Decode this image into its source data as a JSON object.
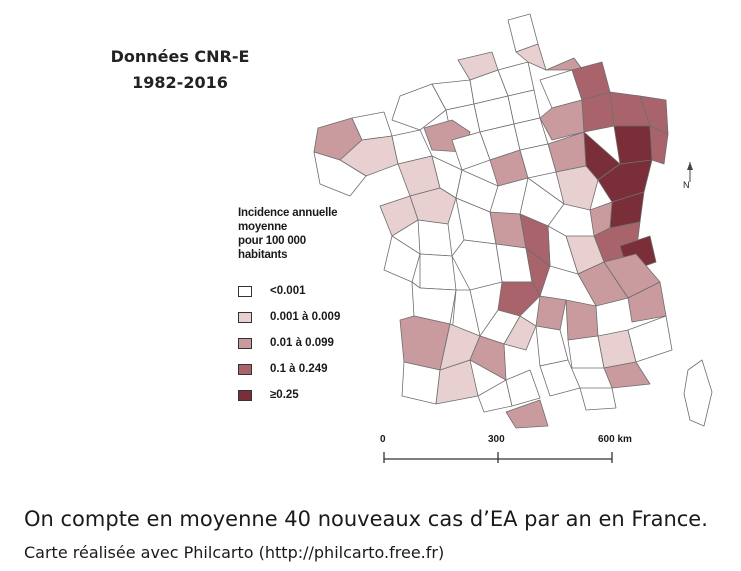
{
  "title": {
    "line1": "Données CNR-E",
    "line2": "1982-2016"
  },
  "legend": {
    "title_lines": [
      "Incidence annuelle",
      "moyenne",
      "pour 100 000",
      "habitants"
    ],
    "items": [
      {
        "label": "<0.001",
        "color": "#ffffff"
      },
      {
        "label": "0.001 à 0.009",
        "color": "#e8d0d0"
      },
      {
        "label": "0.01 à 0.099",
        "color": "#c99a9e"
      },
      {
        "label": "0.1 à 0.249",
        "color": "#a8646a"
      },
      {
        "label": "≥0.25",
        "color": "#7a2f38"
      }
    ]
  },
  "scale_bar": {
    "labels": [
      "0",
      "300",
      "600 km"
    ]
  },
  "compass": {
    "label": "N"
  },
  "caption": {
    "main": "On compte en moyenne 40 nouveaux cas d’EA par an en France.",
    "small": "Carte réalisée avec Philcarto (http://philcarto.free.fr)"
  }
}
